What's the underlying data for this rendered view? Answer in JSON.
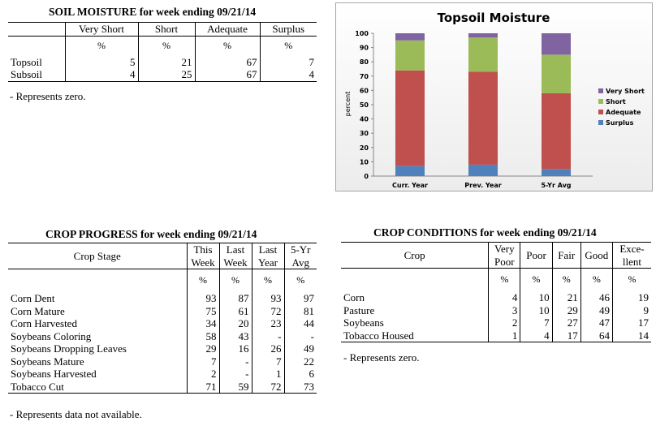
{
  "soil_moisture": {
    "title": "SOIL MOISTURE for week ending 09/21/14",
    "columns": [
      "Very Short",
      "Short",
      "Adequate",
      "Surplus"
    ],
    "unit": "%",
    "rows": [
      {
        "label": "Topsoil",
        "values": [
          "5",
          "21",
          "67",
          "7"
        ]
      },
      {
        "label": "Subsoil",
        "values": [
          "4",
          "25",
          "67",
          "4"
        ]
      }
    ],
    "note": "- Represents zero."
  },
  "chart_data": {
    "type": "bar",
    "stacked": true,
    "title": "Topsoil Moisture",
    "ylabel": "percent",
    "xlabel": "",
    "ylim": [
      0,
      100
    ],
    "yticks": [
      "0",
      "10",
      "20",
      "30",
      "40",
      "50",
      "60",
      "70",
      "80",
      "90",
      "100"
    ],
    "categories": [
      "Curr. Year",
      "Prev. Year",
      "5-Yr Avg"
    ],
    "series": [
      {
        "name": "Surplus",
        "color": "#4f81bd",
        "values": [
          7,
          8,
          5
        ]
      },
      {
        "name": "Adequate",
        "color": "#c0504d",
        "values": [
          67,
          65,
          53
        ]
      },
      {
        "name": "Short",
        "color": "#9bbb59",
        "values": [
          21,
          24,
          27
        ]
      },
      {
        "name": "Very Short",
        "color": "#8064a2",
        "values": [
          5,
          3,
          15
        ]
      }
    ],
    "legend_order": [
      "Very Short",
      "Short",
      "Adequate",
      "Surplus"
    ],
    "legend": "right",
    "grid": false
  },
  "crop_progress": {
    "title": "CROP PROGRESS for week ending 09/21/14",
    "stage_header": "Crop Stage",
    "columns": [
      {
        "l1": "This",
        "l2": "Week"
      },
      {
        "l1": "Last",
        "l2": "Week"
      },
      {
        "l1": "Last",
        "l2": "Year"
      },
      {
        "l1": "5-Yr",
        "l2": "Avg"
      }
    ],
    "unit": "%",
    "rows": [
      {
        "label": "Corn Dent",
        "values": [
          "93",
          "87",
          "93",
          "97"
        ]
      },
      {
        "label": "Corn Mature",
        "values": [
          "75",
          "61",
          "72",
          "81"
        ]
      },
      {
        "label": "Corn Harvested",
        "values": [
          "34",
          "20",
          "23",
          "44"
        ]
      },
      {
        "label": "Soybeans Coloring",
        "values": [
          "58",
          "43",
          "-",
          "-"
        ]
      },
      {
        "label": "Soybeans Dropping Leaves",
        "values": [
          "29",
          "16",
          "26",
          "49"
        ]
      },
      {
        "label": "Soybeans Mature",
        "values": [
          "7",
          "-",
          "7",
          "22"
        ]
      },
      {
        "label": "Soybeans Harvested",
        "values": [
          "2",
          "-",
          "1",
          "6"
        ]
      },
      {
        "label": "Tobacco Cut",
        "values": [
          "71",
          "59",
          "72",
          "73"
        ]
      }
    ],
    "note": "- Represents data not available."
  },
  "crop_conditions": {
    "title": "CROP CONDITIONS for week ending 09/21/14",
    "crop_header": "Crop",
    "columns": [
      {
        "l1": "Very",
        "l2": "Poor"
      },
      {
        "l1": "Poor",
        "l2": ""
      },
      {
        "l1": "Fair",
        "l2": ""
      },
      {
        "l1": "Good",
        "l2": ""
      },
      {
        "l1": "Exce-",
        "l2": "llent"
      }
    ],
    "unit": "%",
    "rows": [
      {
        "label": "Corn",
        "values": [
          "4",
          "10",
          "21",
          "46",
          "19"
        ]
      },
      {
        "label": "Pasture",
        "values": [
          "3",
          "10",
          "29",
          "49",
          "9"
        ]
      },
      {
        "label": "Soybeans",
        "values": [
          "2",
          "7",
          "27",
          "47",
          "17"
        ]
      },
      {
        "label": "Tobacco Housed",
        "values": [
          "1",
          "4",
          "17",
          "64",
          "14"
        ]
      }
    ],
    "note": "- Represents zero."
  }
}
